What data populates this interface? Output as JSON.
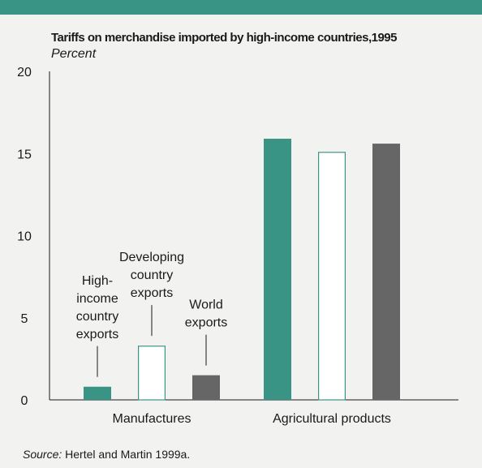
{
  "colors": {
    "top_bar": "#3a9485",
    "background": "#f2f2f1",
    "series": [
      "#3a9485",
      "#ffffff",
      "#666666"
    ],
    "bar_outline": "#3a9485"
  },
  "chart_data": {
    "type": "bar",
    "title": "Tariffs on merchandise imported by high-income countries,1995",
    "subtitle": "Percent",
    "categories": [
      "Manufactures",
      "Agricultural products"
    ],
    "series": [
      {
        "name": "High-income country exports",
        "values": [
          0.8,
          15.9
        ]
      },
      {
        "name": "Developing country exports",
        "values": [
          3.3,
          15.1
        ]
      },
      {
        "name": "World exports",
        "values": [
          1.5,
          15.6
        ]
      }
    ],
    "ylim": [
      0,
      20
    ],
    "yticks": [
      "0",
      "5",
      "10",
      "15",
      "20"
    ],
    "grid": false,
    "annotations": [
      {
        "series": 0,
        "lines": [
          "High-",
          "income",
          "country",
          "exports"
        ]
      },
      {
        "series": 1,
        "lines": [
          "Developing",
          "country",
          "exports"
        ]
      },
      {
        "series": 2,
        "lines": [
          "World",
          "exports"
        ]
      }
    ]
  },
  "source": {
    "label": "Source:",
    "text": " Hertel and Martin 1999a."
  }
}
